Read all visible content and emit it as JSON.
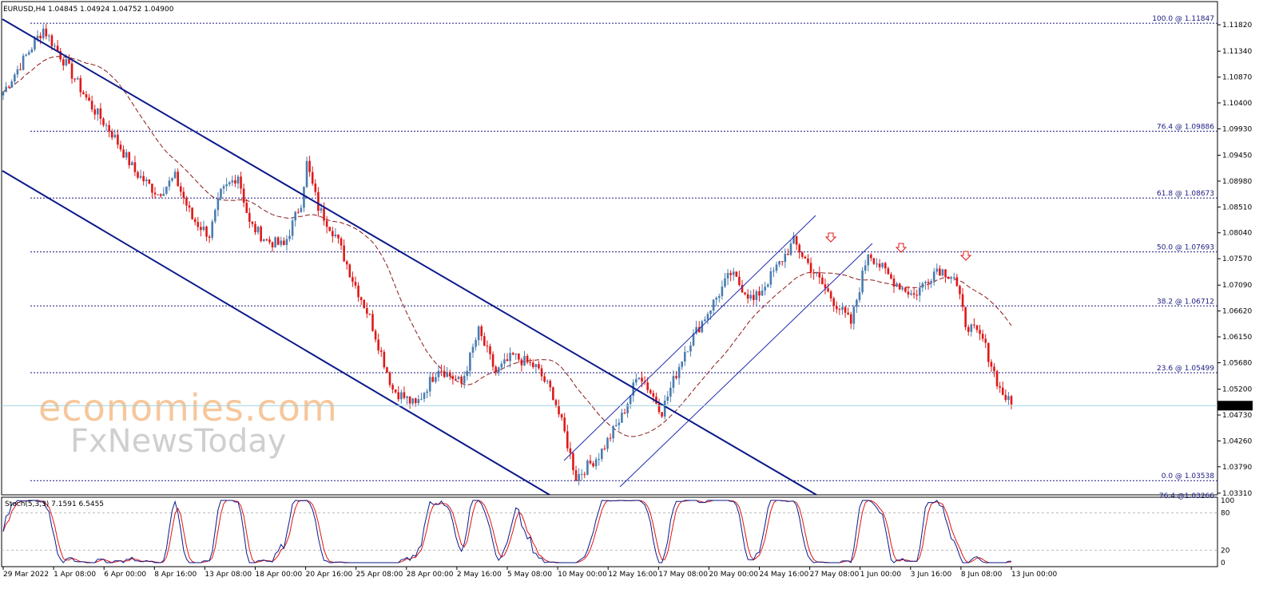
{
  "header": {
    "symbol_line": "EURUSD,H4  1.04845 1.04924 1.04752 1.04900",
    "stoch_line": "Stoch(5,3,3) 7.1591 6.5455"
  },
  "watermark": {
    "line1": "economies.com",
    "line2": "FxNewsToday"
  },
  "chart_data": {
    "type": "candlestick",
    "symbol": "EURUSD",
    "timeframe": "H4",
    "ohlc": {
      "open": 1.04845,
      "high": 1.04924,
      "low": 1.04752,
      "close": 1.049
    },
    "current_price": 1.049,
    "current_price_label": "1.04900",
    "ylim": [
      1.0328,
      1.1198
    ],
    "y_ticks": [
      1.1182,
      1.1134,
      1.1087,
      1.104,
      1.0993,
      1.0945,
      1.0898,
      1.0851,
      1.0804,
      1.0757,
      1.0709,
      1.0662,
      1.0615,
      1.0568,
      1.052,
      1.0473,
      1.0426,
      1.0379,
      1.0331
    ],
    "y_tick_labels": [
      "1.11820",
      "1.11340",
      "1.10870",
      "1.10400",
      "1.09930",
      "1.09450",
      "1.08980",
      "1.08510",
      "1.08040",
      "1.07570",
      "1.07090",
      "1.06620",
      "1.06150",
      "1.05680",
      "1.05200",
      "1.04730",
      "1.04260",
      "1.03790",
      "1.03310"
    ],
    "x_tick_labels": [
      "29 Mar 2022",
      "1 Apr 08:00",
      "6 Apr 00:00",
      "8 Apr 16:00",
      "13 Apr 08:00",
      "18 Apr 00:00",
      "20 Apr 16:00",
      "25 Apr 08:00",
      "28 Apr 00:00",
      "2 May 16:00",
      "5 May 08:00",
      "10 May 00:00",
      "12 May 16:00",
      "17 May 08:00",
      "20 May 00:00",
      "24 May 16:00",
      "27 May 08:00",
      "1 Jun 00:00",
      "3 Jun 16:00",
      "8 Jun 08:00",
      "13 Jun 00:00"
    ],
    "fibonacci": [
      {
        "label": "100.0 @ 1.11847",
        "price": 1.11847
      },
      {
        "label": "76.4 @ 1.09886",
        "price": 1.09886
      },
      {
        "label": "61.8 @ 1.08673",
        "price": 1.08673
      },
      {
        "label": "50.0 @ 1.07693",
        "price": 1.07693
      },
      {
        "label": "38.2 @ 1.06712",
        "price": 1.06712
      },
      {
        "label": "23.6 @ 1.05499",
        "price": 1.05499
      },
      {
        "label": "0.0 @ 1.03538",
        "price": 1.03538
      }
    ],
    "fib_extra_label": "76.4 @1.03266",
    "price_path": [
      [
        0,
        1.106
      ],
      [
        14,
        1.1175
      ],
      [
        22,
        1.111
      ],
      [
        30,
        1.104
      ],
      [
        38,
        1.0985
      ],
      [
        46,
        1.0915
      ],
      [
        54,
        1.0875
      ],
      [
        60,
        1.0905
      ],
      [
        66,
        1.083
      ],
      [
        72,
        1.08
      ],
      [
        76,
        1.0875
      ],
      [
        82,
        1.091
      ],
      [
        86,
        1.082
      ],
      [
        92,
        1.079
      ],
      [
        98,
        1.078
      ],
      [
        104,
        1.086
      ],
      [
        106,
        1.093
      ],
      [
        110,
        1.085
      ],
      [
        116,
        1.08
      ],
      [
        122,
        1.072
      ],
      [
        128,
        1.065
      ],
      [
        136,
        1.052
      ],
      [
        144,
        1.049
      ],
      [
        152,
        1.056
      ],
      [
        160,
        1.053
      ],
      [
        166,
        1.0625
      ],
      [
        172,
        1.055
      ],
      [
        178,
        1.058
      ],
      [
        186,
        1.056
      ],
      [
        192,
        1.051
      ],
      [
        196,
        1.044
      ],
      [
        200,
        1.036
      ],
      [
        208,
        1.04
      ],
      [
        216,
        1.047
      ],
      [
        222,
        1.055
      ],
      [
        230,
        1.048
      ],
      [
        238,
        1.059
      ],
      [
        246,
        1.066
      ],
      [
        254,
        1.073
      ],
      [
        262,
        1.068
      ],
      [
        270,
        1.074
      ],
      [
        276,
        1.0788
      ],
      [
        282,
        1.074
      ],
      [
        290,
        1.068
      ],
      [
        296,
        1.064
      ],
      [
        302,
        1.077
      ],
      [
        310,
        1.072
      ],
      [
        318,
        1.069
      ],
      [
        326,
        1.074
      ],
      [
        332,
        1.0725
      ],
      [
        336,
        1.064
      ],
      [
        342,
        1.061
      ],
      [
        348,
        1.052
      ],
      [
        352,
        1.049
      ]
    ],
    "trend_channels": [
      {
        "name": "descending",
        "color": "#0a1a8a"
      },
      {
        "name": "ascending",
        "color": "#1f2bb0"
      }
    ],
    "stochastic": {
      "name": "Stoch(5,3,3)",
      "k": 7.1591,
      "d": 6.5455,
      "levels": [
        100,
        80,
        20,
        0
      ],
      "level_labels": [
        "100",
        "80",
        "20",
        "0"
      ],
      "series": [
        {
          "name": "main",
          "color": "#0a1a8a"
        },
        {
          "name": "signal",
          "color": "#e01515"
        }
      ]
    },
    "colors": {
      "bull": "#4a7db0",
      "bear": "#e01818",
      "ma": "#8b1a1a",
      "fib": "#1a1a80",
      "background": "#ffffff"
    }
  }
}
